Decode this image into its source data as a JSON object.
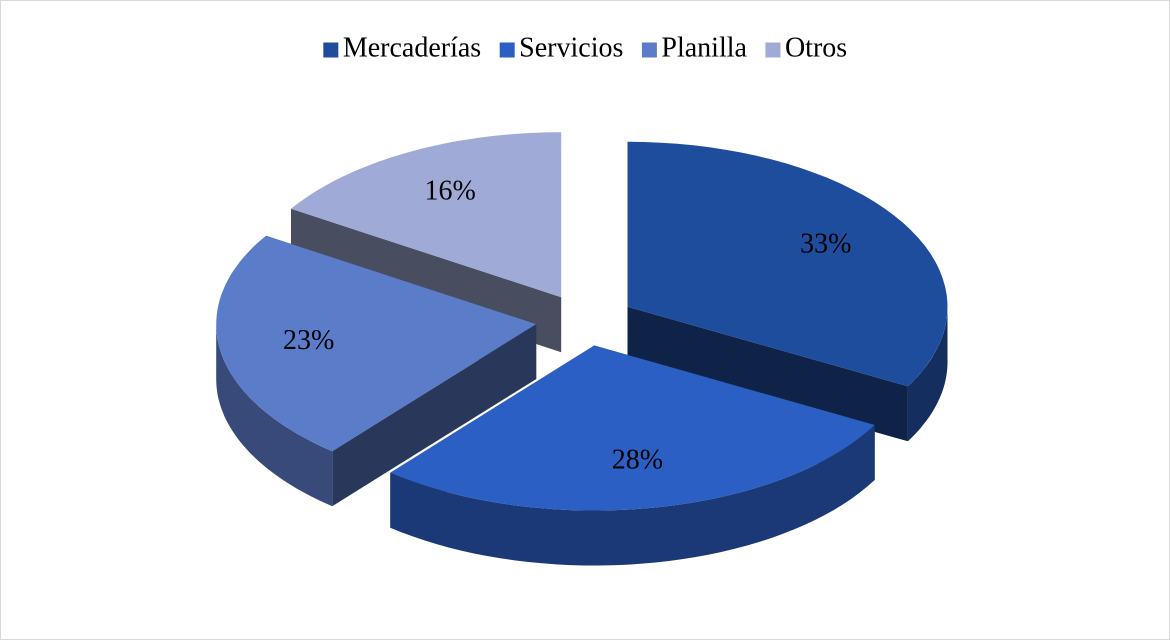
{
  "chart_data": {
    "type": "pie",
    "categories": [
      "Mercaderías",
      "Servicios",
      "Planilla",
      "Otros"
    ],
    "values": [
      33,
      28,
      23,
      16
    ],
    "value_labels": [
      "33%",
      "28%",
      "23%",
      "16%"
    ],
    "colors": [
      "#1f4d9e",
      "#2b5fc4",
      "#5b7cc9",
      "#9fabd6"
    ],
    "legend": "top"
  }
}
